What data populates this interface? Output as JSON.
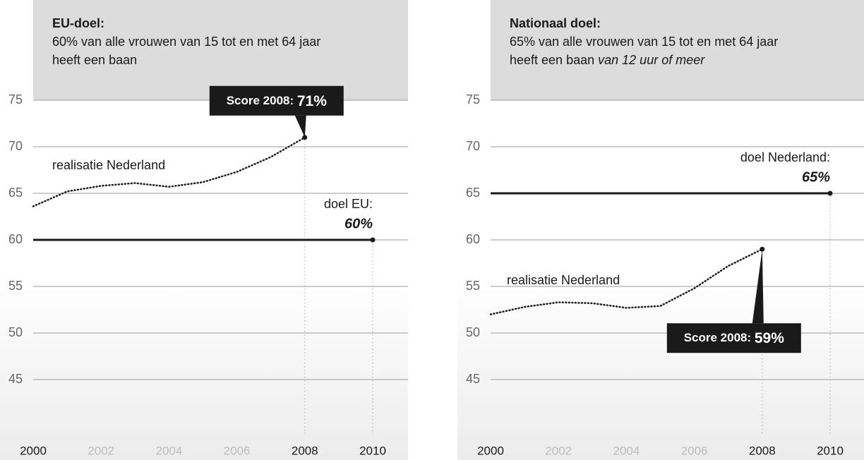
{
  "chart_data": [
    {
      "type": "line",
      "title": "EU-doel:",
      "subtitle": [
        "60% van alle vrouwen van 15 tot en met 64 jaar",
        "heeft een baan"
      ],
      "subtitle_italic": null,
      "xlim": [
        2000,
        2010
      ],
      "xticks": [
        2000,
        2002,
        2004,
        2006,
        2008,
        2010
      ],
      "xtick_colors": [
        "#1a1a1a",
        "#bdbdbd",
        "#bdbdbd",
        "#bdbdbd",
        "#1a1a1a",
        "#1a1a1a"
      ],
      "ylim": [
        40,
        75
      ],
      "yticks": [
        45,
        50,
        55,
        60,
        65,
        70,
        75
      ],
      "grid": true,
      "series": [
        {
          "name": "realisatie Nederland",
          "color": "#1a1a1a",
          "style": "dotted",
          "x": [
            2000,
            2001,
            2002,
            2003,
            2004,
            2005,
            2006,
            2007,
            2008
          ],
          "values": [
            63.6,
            65.2,
            65.8,
            66.1,
            65.7,
            66.2,
            67.3,
            68.9,
            71
          ],
          "value_labels": [
            null,
            null,
            null,
            null,
            null,
            null,
            null,
            null,
            "71%"
          ],
          "annotation": "Score 2008:"
        },
        {
          "name": "doel EU:",
          "color": "#1a1a1a",
          "style": "solid",
          "x": [
            2000,
            2010
          ],
          "values": [
            60,
            60
          ],
          "value_labels": [
            null,
            "60%"
          ]
        }
      ]
    },
    {
      "type": "line",
      "title": "Nationaal doel:",
      "subtitle": [
        "65% van alle vrouwen van 15 tot en met 64 jaar",
        "heeft een baan"
      ],
      "subtitle_italic": "van 12 uur of meer",
      "xlim": [
        2000,
        2010
      ],
      "xticks": [
        2000,
        2002,
        2004,
        2006,
        2008,
        2010
      ],
      "xtick_colors": [
        "#1a1a1a",
        "#bdbdbd",
        "#bdbdbd",
        "#bdbdbd",
        "#1a1a1a",
        "#1a1a1a"
      ],
      "ylim": [
        40,
        75
      ],
      "yticks": [
        45,
        50,
        55,
        60,
        65,
        70,
        75
      ],
      "grid": true,
      "series": [
        {
          "name": "realisatie Nederland",
          "color": "#1a1a1a",
          "style": "dotted",
          "x": [
            2000,
            2001,
            2002,
            2003,
            2004,
            2005,
            2006,
            2007,
            2008
          ],
          "values": [
            52.0,
            52.8,
            53.3,
            53.2,
            52.7,
            52.9,
            54.8,
            57.2,
            59
          ],
          "value_labels": [
            null,
            null,
            null,
            null,
            null,
            null,
            null,
            null,
            "59%"
          ],
          "annotation": "Score 2008:"
        },
        {
          "name": "doel Nederland:",
          "color": "#1a1a1a",
          "style": "solid",
          "x": [
            2000,
            2010
          ],
          "values": [
            65,
            65
          ],
          "value_labels": [
            null,
            "65%"
          ]
        }
      ]
    }
  ]
}
